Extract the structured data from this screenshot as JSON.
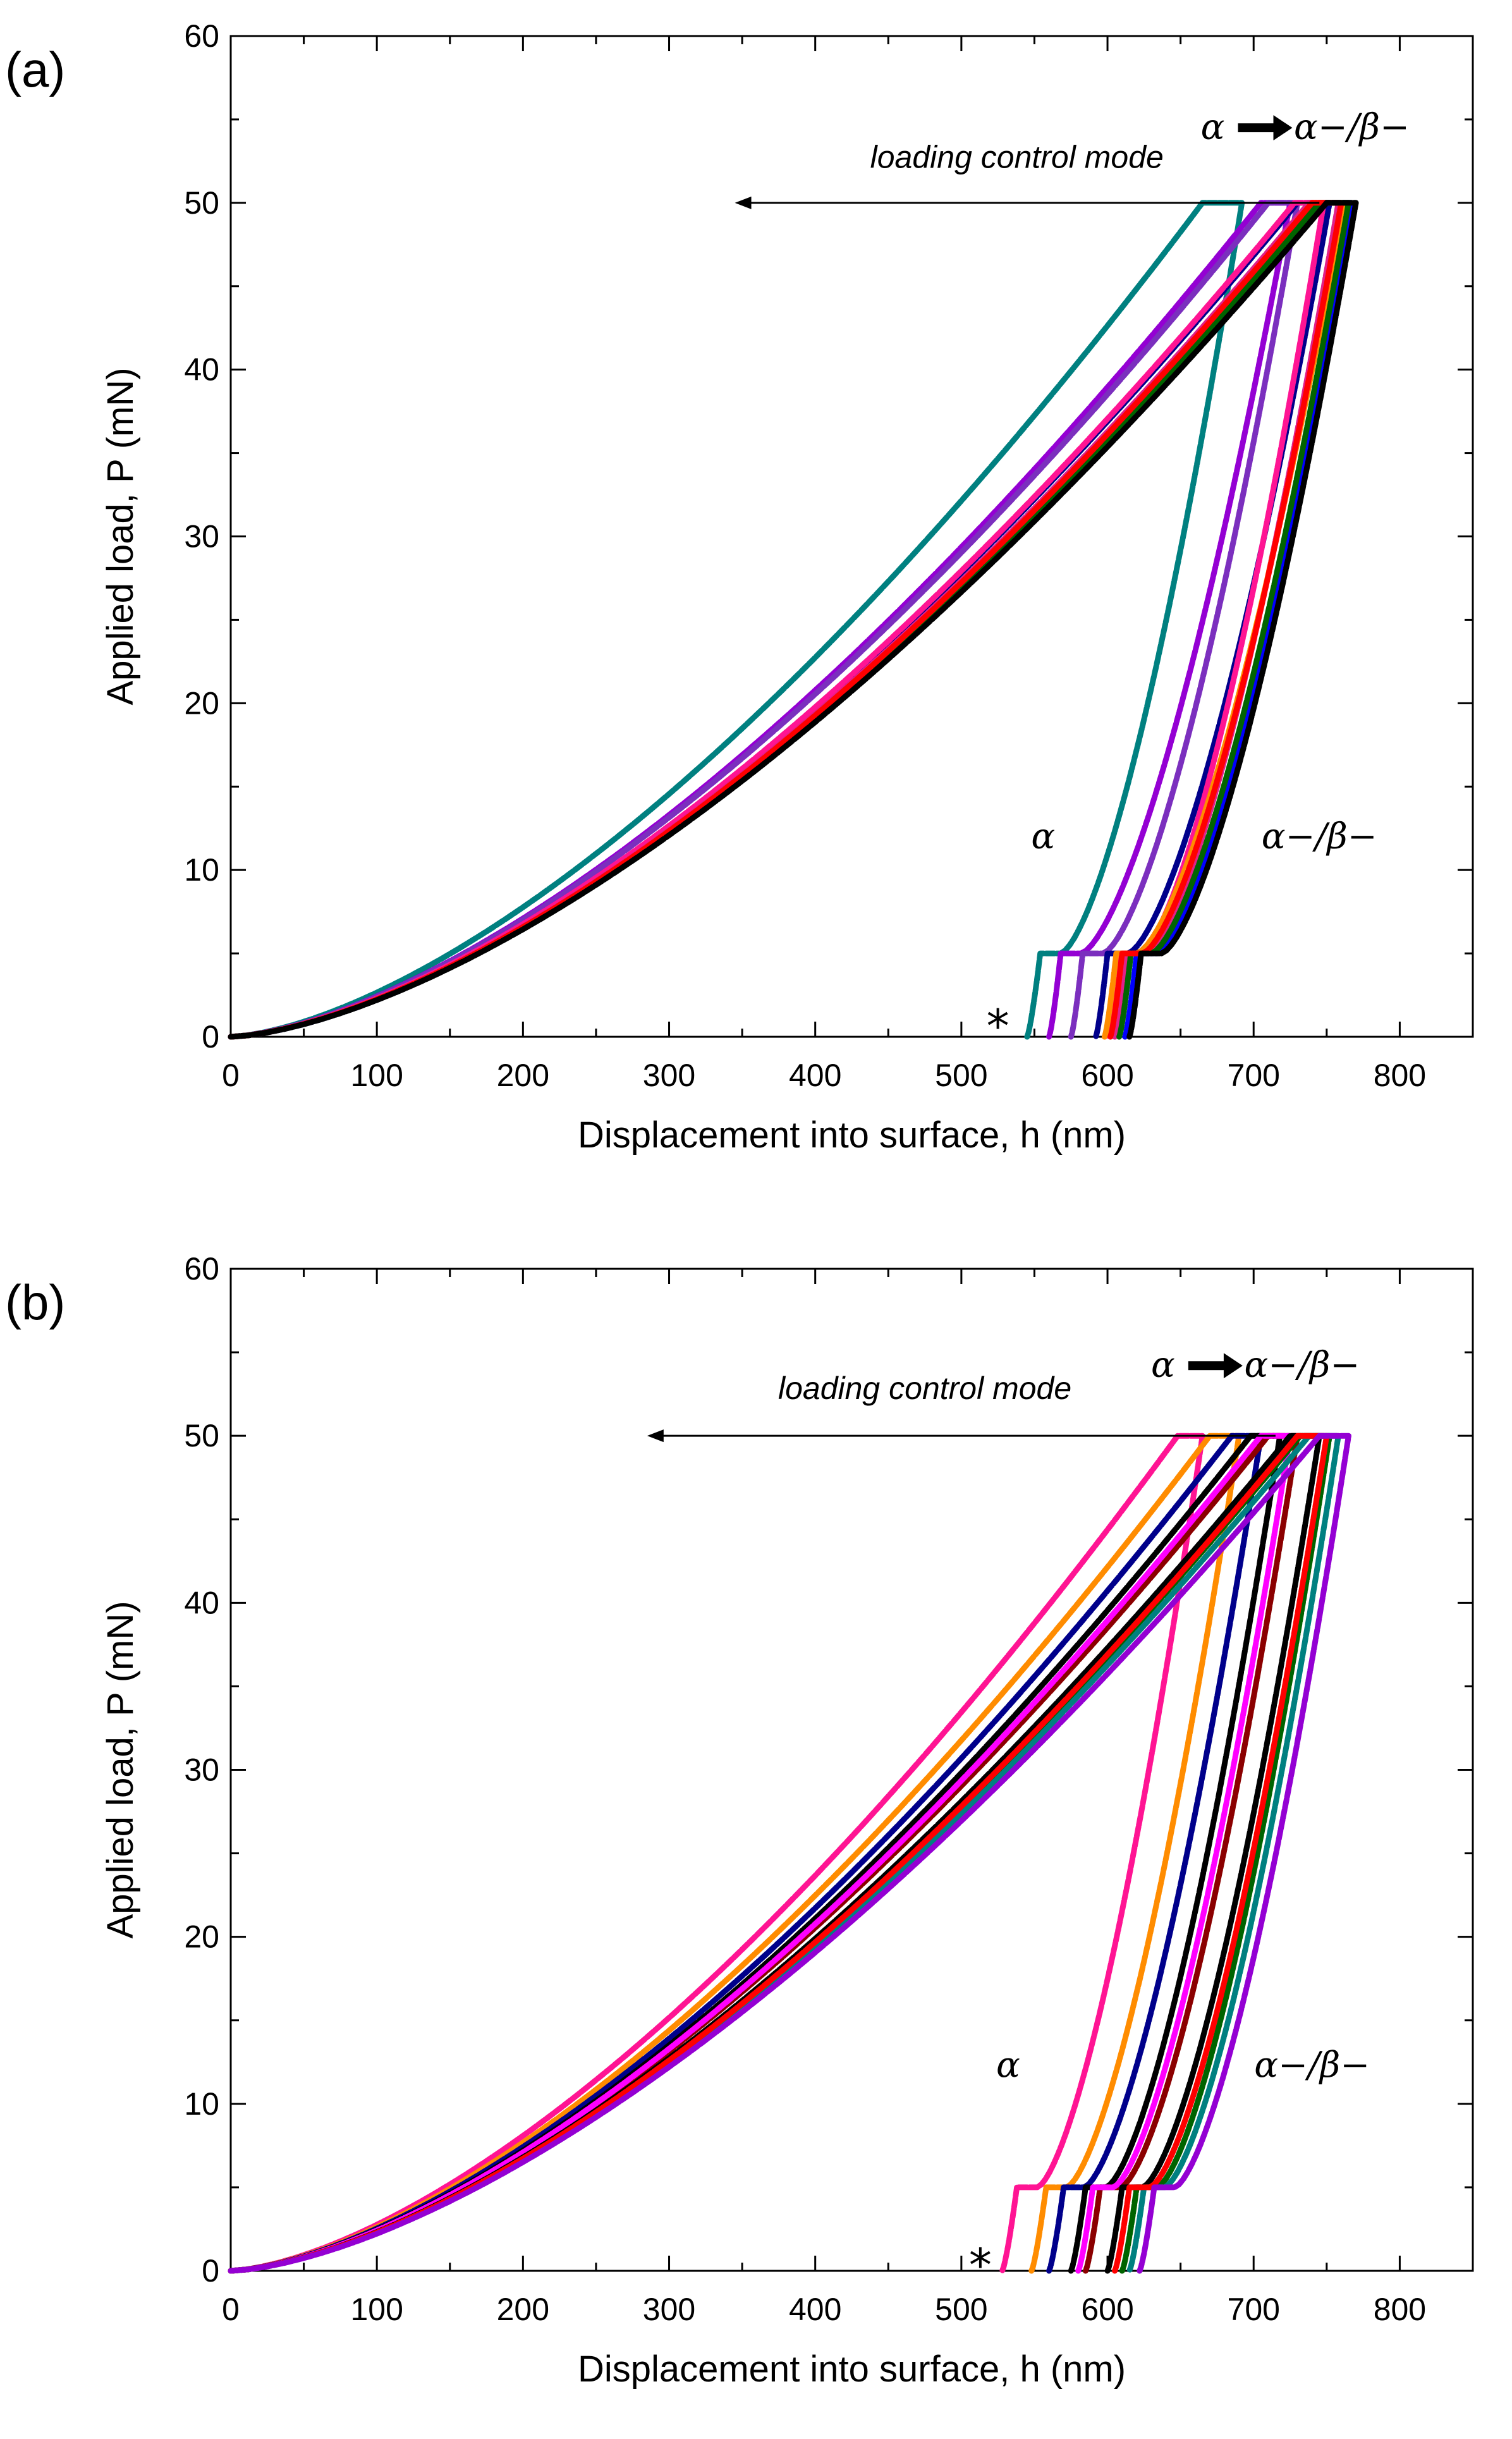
{
  "chart_data": [
    {
      "panel_label": "(a)",
      "type": "line",
      "xlabel": "Displacement into surface, h (nm)",
      "ylabel": "Applied load, P (mN)",
      "xlim": [
        0,
        850
      ],
      "ylim": [
        0,
        60
      ],
      "xticks": [
        "0",
        "100",
        "200",
        "300",
        "400",
        "500",
        "600",
        "700",
        "800"
      ],
      "yticks": [
        "0",
        "10",
        "20",
        "30",
        "40",
        "50",
        "60"
      ],
      "annotations": {
        "arrow_text": "loading control mode",
        "arrow_from_x": 745,
        "arrow_to_x": 345,
        "arrow_y": 50,
        "transition_from": "α",
        "transition_to": "α−/β−",
        "alpha_label": "α",
        "alpha_beta_label": "α−/β−",
        "star": "*"
      },
      "series": [
        {
          "name": "s1",
          "color": "#008080",
          "h_max": 692,
          "hold_start": 665,
          "h_final": 545,
          "h_mid": 568
        },
        {
          "name": "s2",
          "color": "#9400D3",
          "h_max": 725,
          "hold_start": 705,
          "h_final": 560,
          "h_mid": 582
        },
        {
          "name": "s3",
          "color": "#7B2FBE",
          "h_max": 730,
          "hold_start": 710,
          "h_final": 575,
          "h_mid": 597
        },
        {
          "name": "s4",
          "color": "#00008B",
          "h_max": 752,
          "hold_start": 730,
          "h_final": 592,
          "h_mid": 614
        },
        {
          "name": "s5",
          "color": "#FF1493",
          "h_max": 748,
          "hold_start": 728,
          "h_final": 600,
          "h_mid": 622
        },
        {
          "name": "s6",
          "color": "#E0218A",
          "h_max": 758,
          "hold_start": 738,
          "h_final": 605,
          "h_mid": 627
        },
        {
          "name": "s7",
          "color": "#FF8C00",
          "h_max": 762,
          "hold_start": 742,
          "h_final": 598,
          "h_mid": 620
        },
        {
          "name": "s8",
          "color": "#0000FF",
          "h_max": 768,
          "hold_start": 748,
          "h_final": 612,
          "h_mid": 634
        },
        {
          "name": "s9",
          "color": "#006400",
          "h_max": 765,
          "hold_start": 745,
          "h_final": 608,
          "h_mid": 630
        },
        {
          "name": "s10",
          "color": "#FF0000",
          "h_max": 760,
          "hold_start": 740,
          "h_final": 602,
          "h_mid": 624
        },
        {
          "name": "s11",
          "color": "#000000",
          "h_max": 770,
          "hold_start": 750,
          "h_final": 615,
          "h_mid": 637
        }
      ]
    },
    {
      "panel_label": "(b)",
      "type": "line",
      "xlabel": "Displacement into surface, h (nm)",
      "ylabel": "Applied load, P (mN)",
      "xlim": [
        0,
        850
      ],
      "ylim": [
        0,
        60
      ],
      "xticks": [
        "0",
        "100",
        "200",
        "300",
        "400",
        "500",
        "600",
        "700",
        "800"
      ],
      "yticks": [
        "0",
        "10",
        "20",
        "30",
        "40",
        "50",
        "60"
      ],
      "annotations": {
        "arrow_text": "loading control mode",
        "arrow_from_x": 715,
        "arrow_to_x": 285,
        "arrow_y": 50,
        "transition_from": "α",
        "transition_to": "α−/β−",
        "alpha_label": "α",
        "alpha_beta_label": "α−/β−",
        "star": "*"
      },
      "series": [
        {
          "name": "s1",
          "color": "#FF1493",
          "h_max": 665,
          "hold_start": 648,
          "h_final": 528,
          "h_mid": 552
        },
        {
          "name": "s2",
          "color": "#FF8C00",
          "h_max": 690,
          "hold_start": 670,
          "h_final": 548,
          "h_mid": 572
        },
        {
          "name": "s3",
          "color": "#00008B",
          "h_max": 705,
          "hold_start": 685,
          "h_final": 560,
          "h_mid": 584
        },
        {
          "name": "s4",
          "color": "#000000",
          "h_max": 718,
          "hold_start": 698,
          "h_final": 575,
          "h_mid": 599
        },
        {
          "name": "s5",
          "color": "#8B0000",
          "h_max": 730,
          "hold_start": 710,
          "h_final": 585,
          "h_mid": 609
        },
        {
          "name": "s6",
          "color": "#FF00FF",
          "h_max": 725,
          "hold_start": 705,
          "h_final": 580,
          "h_mid": 604
        },
        {
          "name": "s7",
          "color": "#000000",
          "h_max": 745,
          "hold_start": 725,
          "h_final": 600,
          "h_mid": 624
        },
        {
          "name": "s8",
          "color": "#006400",
          "h_max": 752,
          "hold_start": 732,
          "h_final": 610,
          "h_mid": 634
        },
        {
          "name": "s9",
          "color": "#008080",
          "h_max": 758,
          "hold_start": 738,
          "h_final": 615,
          "h_mid": 639
        },
        {
          "name": "s10",
          "color": "#FF0000",
          "h_max": 750,
          "hold_start": 730,
          "h_final": 605,
          "h_mid": 629
        },
        {
          "name": "s11",
          "color": "#9400D3",
          "h_max": 765,
          "hold_start": 745,
          "h_final": 622,
          "h_mid": 646
        }
      ]
    }
  ]
}
